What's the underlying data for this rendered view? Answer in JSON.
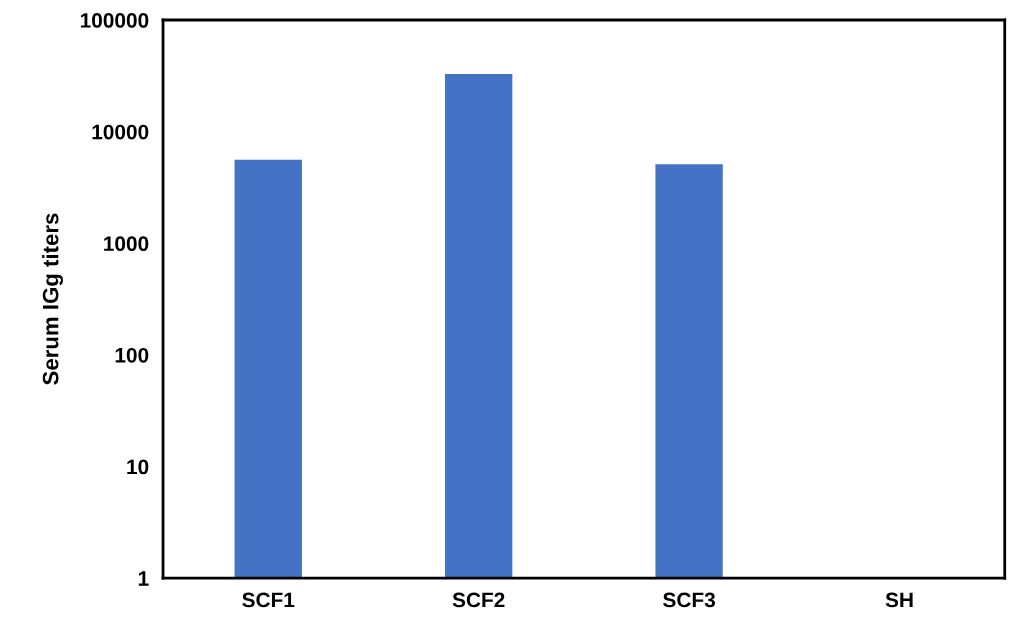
{
  "chart_data": {
    "type": "bar",
    "ylabel": "Serum IGg titers",
    "categories": [
      "SCF1",
      "SCF2",
      "SCF3",
      "SH"
    ],
    "values": [
      5600,
      32800,
      5100,
      null
    ],
    "color": "#4472c4",
    "log": true,
    "ylim": [
      1,
      100000
    ],
    "yticks": [
      1,
      10,
      100,
      1000,
      10000,
      100000
    ],
    "grid": false
  }
}
